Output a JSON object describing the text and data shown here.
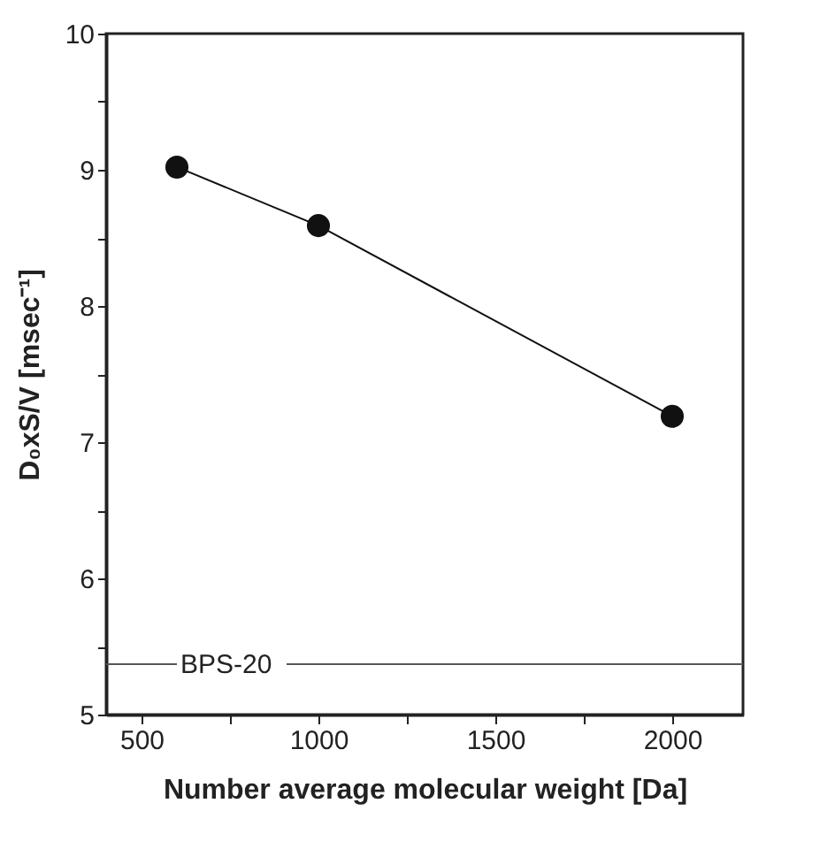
{
  "chart_data": {
    "type": "line",
    "xlabel": "Number average molecular weight [Da]",
    "ylabel": "D₀xS/V [msec⁻¹]",
    "x": [
      600,
      1000,
      2000
    ],
    "series": [
      {
        "color": "#111111",
        "values": [
          9.02,
          8.59,
          7.19
        ]
      }
    ],
    "marker": "circle",
    "line_style": "solid",
    "grid": false,
    "xlim": [
      400,
      2200
    ],
    "ylim": [
      5,
      10
    ],
    "xticks": [
      500,
      {
        "value": 750,
        "label": null
      },
      1000,
      {
        "value": 1250,
        "label": null
      },
      1500,
      {
        "value": 1750,
        "label": null
      },
      2000
    ],
    "yticks": [
      5,
      {
        "value": 5.5,
        "label": null
      },
      6,
      {
        "value": 6.5,
        "label": null
      },
      7,
      {
        "value": 7.5,
        "label": null
      },
      8,
      {
        "value": 8.5,
        "label": null
      },
      9,
      {
        "value": 9.5,
        "label": null
      },
      10
    ],
    "ref_lines": [
      {
        "axis": "y",
        "value": 5.37,
        "label": "BPS-20",
        "color": "#555555",
        "line_style": "solid"
      }
    ]
  }
}
